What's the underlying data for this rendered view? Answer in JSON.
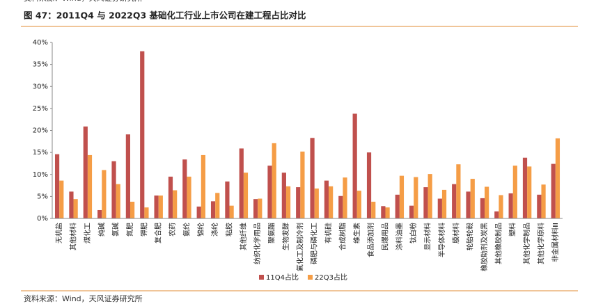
{
  "header": {
    "title": "图 47：2011Q4 与 2022Q3 基础化工行业上市公司在建工程占比对比",
    "source": "资料来源：Wind，天风证券研究所"
  },
  "chart_data": {
    "type": "bar",
    "categories": [
      "无机盐",
      "其他材料",
      "煤化工",
      "纯碱",
      "氯碱",
      "氮肥",
      "钾肥",
      "复合肥",
      "农药",
      "氨纶",
      "锦纶",
      "涤纶",
      "粘胶",
      "其他纤维",
      "纺织化学用品",
      "聚氨酯",
      "生物发酵",
      "氟化工及制冷剂",
      "磷肥与磷化工",
      "有机硅",
      "合成树脂",
      "维生素",
      "食品添加剂",
      "民爆用品",
      "涂料油墨",
      "钛白粉",
      "显示材料",
      "半导体材料",
      "膜材料",
      "轮胎轮毂",
      "橡胶助剂及炭黑",
      "其他橡胶制品",
      "塑料",
      "其他化学制品",
      "其他化学原料",
      "非金属材料Ⅲ"
    ],
    "series": [
      {
        "name": "11Q4占比",
        "color": "#c0504d",
        "values": [
          14.6,
          6.1,
          20.9,
          1.9,
          13.0,
          19.1,
          38.0,
          5.2,
          9.5,
          13.4,
          2.7,
          3.9,
          8.4,
          15.9,
          4.4,
          12.0,
          10.4,
          7.1,
          18.3,
          8.6,
          5.1,
          23.8,
          15.0,
          2.8,
          5.4,
          2.9,
          7.1,
          4.5,
          7.8,
          6.1,
          4.6,
          1.6,
          5.7,
          13.8,
          5.4,
          12.4
        ]
      },
      {
        "name": "22Q3占比",
        "color": "#f59d46",
        "values": [
          8.6,
          4.4,
          14.4,
          11.0,
          7.8,
          3.8,
          2.5,
          5.2,
          6.4,
          9.5,
          14.4,
          5.8,
          2.9,
          10.4,
          4.5,
          17.1,
          7.3,
          15.2,
          6.8,
          7.3,
          9.3,
          6.3,
          3.8,
          2.5,
          9.7,
          9.4,
          10.1,
          6.5,
          12.3,
          9.0,
          7.2,
          5.3,
          12.0,
          11.8,
          7.7,
          18.2
        ]
      }
    ],
    "ylim": [
      0,
      40
    ],
    "yticks": [
      {
        "value": 0,
        "label": "0%"
      },
      {
        "value": 5,
        "label": "5%"
      },
      {
        "value": 10,
        "label": "10%"
      },
      {
        "value": 15,
        "label": "15%"
      },
      {
        "value": 20,
        "label": "20%"
      },
      {
        "value": 25,
        "label": "25%"
      },
      {
        "value": 30,
        "label": "30%"
      },
      {
        "value": 35,
        "label": "35%"
      },
      {
        "value": 40,
        "label": "40%"
      }
    ],
    "grid": false,
    "legend": "bottom"
  }
}
